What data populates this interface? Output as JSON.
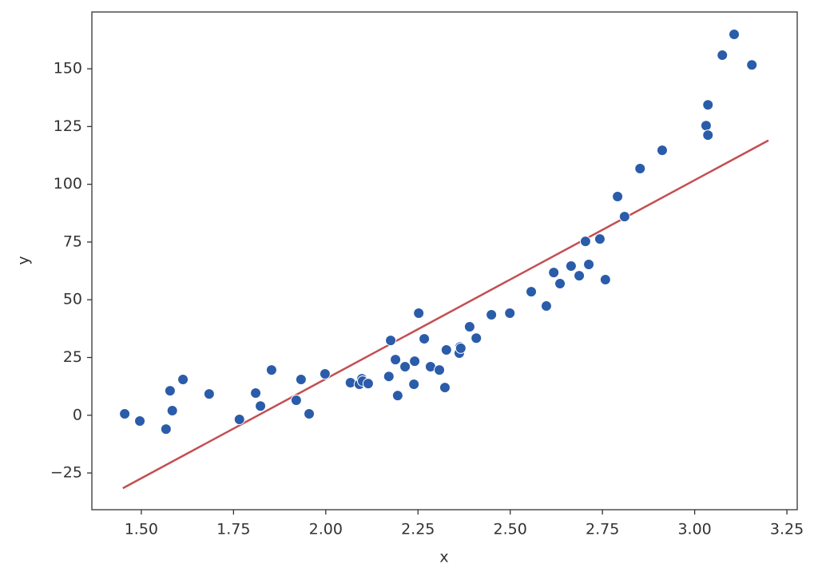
{
  "chart_data": {
    "type": "scatter",
    "xlabel": "x",
    "ylabel": "y",
    "x": [
      1.455,
      1.496,
      1.567,
      1.578,
      1.584,
      1.613,
      1.684,
      1.766,
      1.81,
      1.823,
      1.853,
      1.92,
      1.933,
      1.955,
      1.998,
      2.067,
      2.091,
      2.098,
      2.1,
      2.115,
      2.171,
      2.176,
      2.189,
      2.195,
      2.215,
      2.239,
      2.241,
      2.252,
      2.267,
      2.284,
      2.308,
      2.323,
      2.327,
      2.362,
      2.364,
      2.366,
      2.39,
      2.408,
      2.449,
      2.499,
      2.557,
      2.598,
      2.618,
      2.635,
      2.665,
      2.687,
      2.704,
      2.713,
      2.743,
      2.758,
      2.791,
      2.81,
      2.852,
      2.912,
      3.031,
      3.036,
      3.036,
      3.075,
      3.107,
      3.155
    ],
    "values": [
      0.6,
      -2.5,
      -6.0,
      10.6,
      2.0,
      15.5,
      9.2,
      -1.8,
      9.6,
      4.0,
      19.6,
      6.5,
      15.5,
      0.6,
      17.9,
      14.1,
      13.4,
      15.8,
      14.8,
      13.7,
      16.8,
      32.4,
      24.1,
      8.5,
      21.0,
      13.4,
      23.4,
      44.2,
      33.1,
      21.0,
      19.6,
      12.0,
      28.3,
      26.9,
      29.6,
      29.0,
      38.3,
      33.4,
      43.5,
      44.2,
      53.5,
      47.3,
      61.8,
      57.0,
      64.6,
      60.4,
      75.3,
      65.3,
      76.3,
      58.7,
      94.7,
      86.0,
      106.8,
      114.7,
      125.4,
      134.4,
      121.3,
      155.9,
      164.9,
      151.7
    ],
    "color": "#2a5caa",
    "fit": {
      "x": [
        1.45,
        3.2
      ],
      "values": [
        -31.6,
        119.0
      ],
      "color": "#c44e52"
    },
    "xlim": [
      1.366,
      3.278
    ],
    "ylim": [
      -40.9,
      174.6
    ],
    "xticks": [
      {
        "value": 1.5,
        "label": "1.50"
      },
      {
        "value": 1.75,
        "label": "1.75"
      },
      {
        "value": 2.0,
        "label": "2.00"
      },
      {
        "value": 2.25,
        "label": "2.25"
      },
      {
        "value": 2.5,
        "label": "2.50"
      },
      {
        "value": 2.75,
        "label": "2.75"
      },
      {
        "value": 3.0,
        "label": "3.00"
      },
      {
        "value": 3.25,
        "label": "3.25"
      }
    ],
    "yticks": [
      {
        "value": -25,
        "label": "−25"
      },
      0,
      25,
      50,
      75,
      100,
      125,
      150
    ]
  }
}
